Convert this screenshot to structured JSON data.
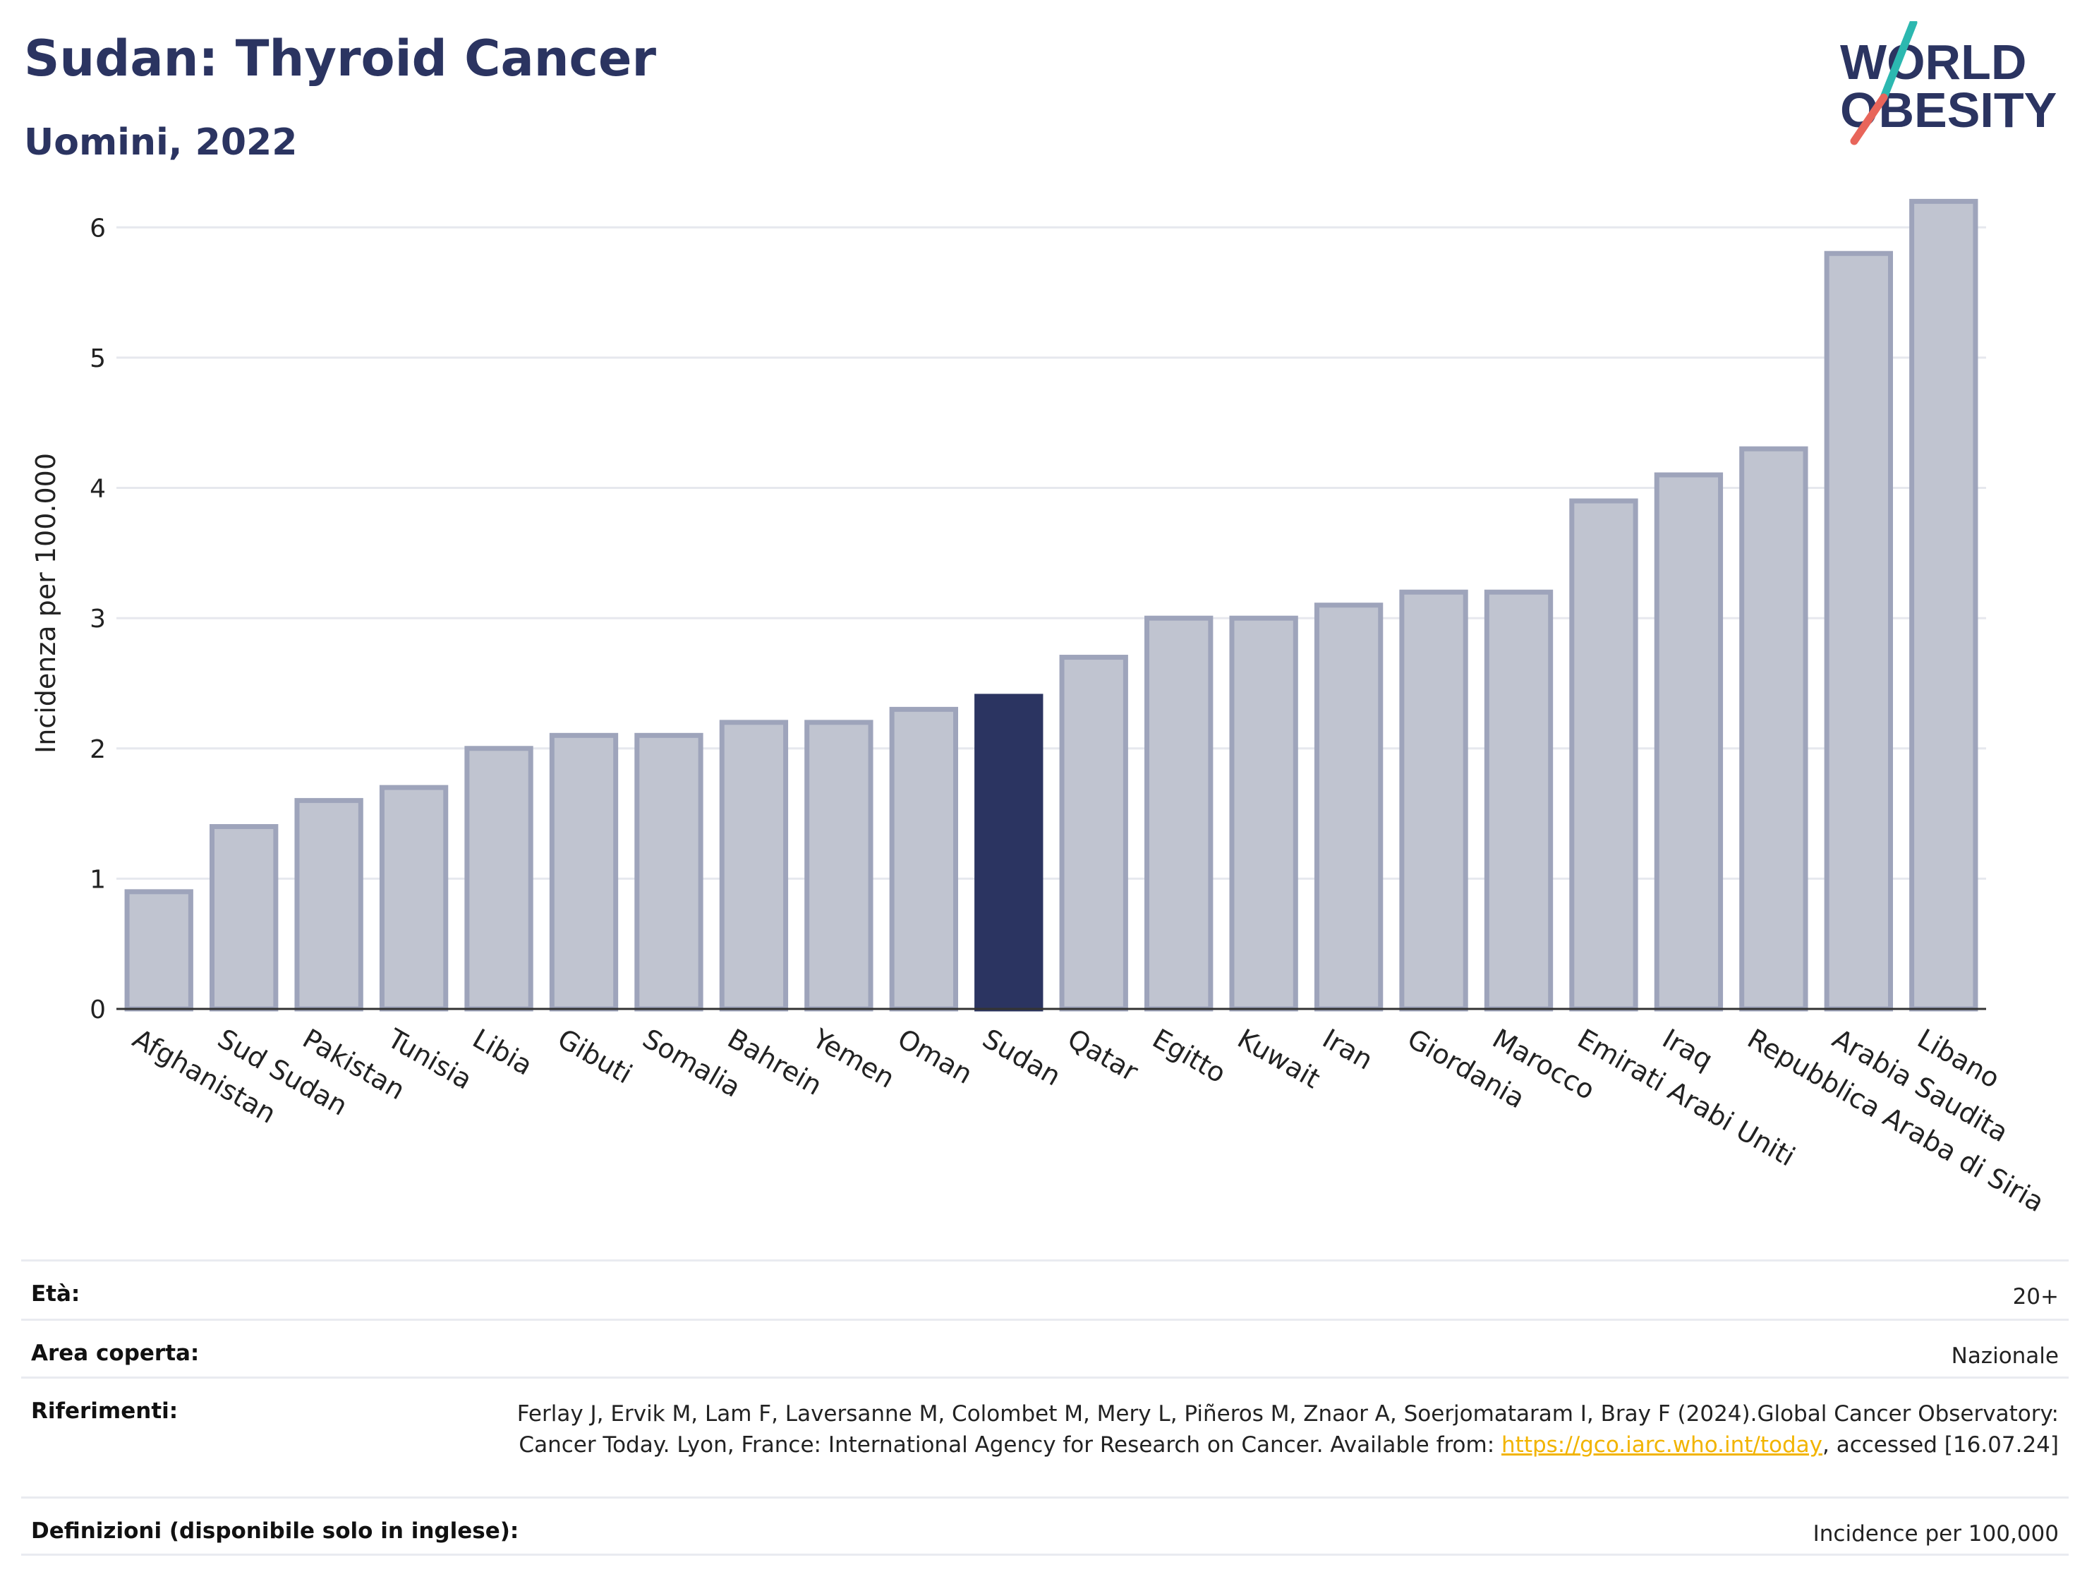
{
  "header": {
    "title": "Sudan: Thyroid Cancer",
    "subtitle": "Uomini, 2022"
  },
  "logo": {
    "line1": "WORLD",
    "line2": "OBESITY",
    "accent_teal": "#2cb8b0",
    "accent_red": "#e8655a",
    "text_color": "#2b3461"
  },
  "colors": {
    "bar_default_fill": "#c0c4d0",
    "bar_default_stroke": "#9ea4bb",
    "bar_highlight": "#2b3461",
    "grid": "#e6e8ee",
    "axis": "#333333"
  },
  "chart_data": {
    "type": "bar",
    "categories": [
      "Afghanistan",
      "Sud Sudan",
      "Pakistan",
      "Tunisia",
      "Libia",
      "Gibuti",
      "Somalia",
      "Bahrein",
      "Yemen",
      "Oman",
      "Sudan",
      "Qatar",
      "Egitto",
      "Kuwait",
      "Iran",
      "Giordania",
      "Marocco",
      "Emirati Arabi Uniti",
      "Iraq",
      "Repubblica Araba di Siria",
      "Arabia Saudita",
      "Libano"
    ],
    "values": [
      0.9,
      1.4,
      1.6,
      1.7,
      2.0,
      2.1,
      2.1,
      2.2,
      2.2,
      2.3,
      2.4,
      2.7,
      3.0,
      3.0,
      3.1,
      3.2,
      3.2,
      3.9,
      4.1,
      4.3,
      5.8,
      6.2
    ],
    "highlight": "Sudan",
    "ylabel": "Incidenza per 100.000",
    "xlabel": "",
    "ylim": [
      0,
      6.5
    ],
    "yticks": [
      0,
      1,
      2,
      3,
      4,
      5,
      6
    ],
    "grid": true
  },
  "meta": {
    "rows": [
      {
        "label": "Età:",
        "value": "20+"
      },
      {
        "label": "Area coperta:",
        "value": "Nazionale"
      },
      {
        "label": "Riferimenti:",
        "value_before": "Ferlay J, Ervik M, Lam F, Laversanne M, Colombet M, Mery L, Piñeros M, Znaor A, Soerjomataram I, Bray F (2024).Global Cancer Observatory: Cancer Today. Lyon, France: International Agency for Research on Cancer. Available from: ",
        "link": "https://gco.iarc.who.int/today",
        "value_after": ", accessed [16.07.24]"
      },
      {
        "label": "Definizioni (disponibile solo in inglese):",
        "value": "Incidence per 100,000"
      }
    ]
  }
}
